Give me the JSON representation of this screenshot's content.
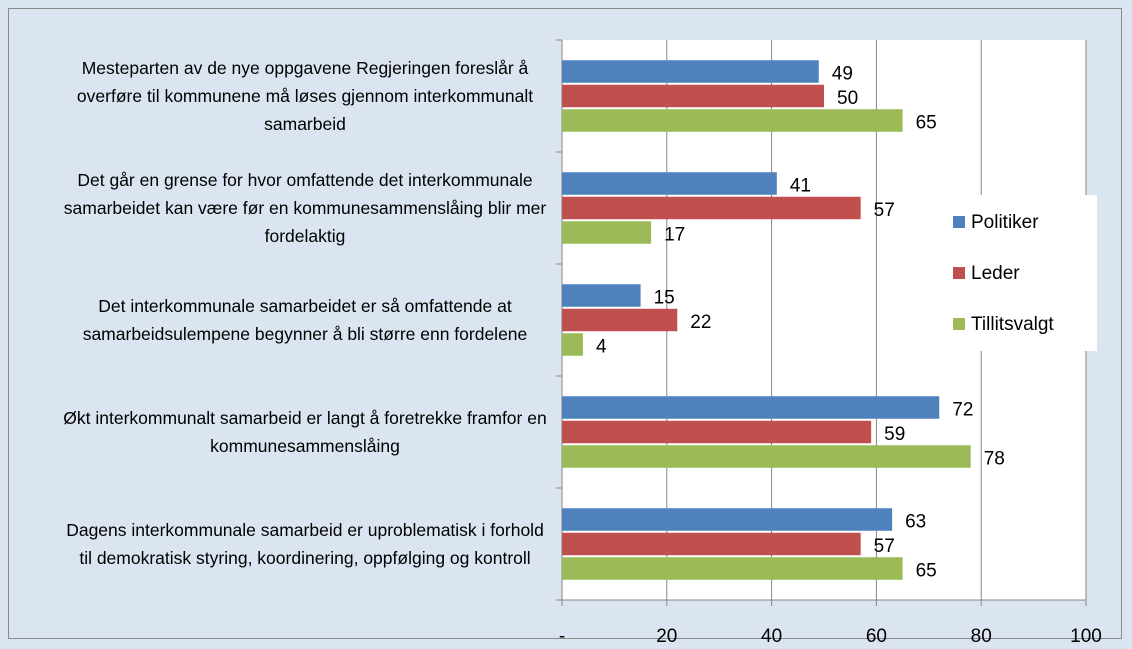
{
  "chart_data": {
    "type": "bar",
    "orientation": "horizontal",
    "categories": [
      "Mesteparten av de nye oppgavene Regjeringen foreslår å overføre til kommunene må løses gjennom interkommunalt samarbeid",
      "Det går en grense for hvor omfattende det interkommunale samarbeidet kan være før en kommunesammenslåing blir mer fordelaktig",
      "Det interkommunale samarbeidet er så omfattende at samarbeidsulempene begynner å bli større enn fordelene",
      "Økt interkommunalt samarbeid er langt å foretrekke framfor en kommunesammenslåing",
      "Dagens interkommunale samarbeid er uproblematisk i forhold til demokratisk styring, koordinering, oppfølging og kontroll"
    ],
    "series": [
      {
        "name": "Politiker",
        "color": "#4f81bd",
        "values": [
          49,
          41,
          15,
          72,
          63
        ]
      },
      {
        "name": "Leder",
        "color": "#c0504d",
        "values": [
          50,
          57,
          22,
          59,
          57
        ]
      },
      {
        "name": "Tillitsvalgt",
        "color": "#9bbb59",
        "values": [
          65,
          17,
          4,
          78,
          65
        ]
      }
    ],
    "xlim": [
      0,
      100
    ],
    "xticks": [
      {
        "value": 0,
        "label": "-"
      },
      20,
      40,
      60,
      80,
      100
    ],
    "grid": true,
    "legend": "right"
  }
}
